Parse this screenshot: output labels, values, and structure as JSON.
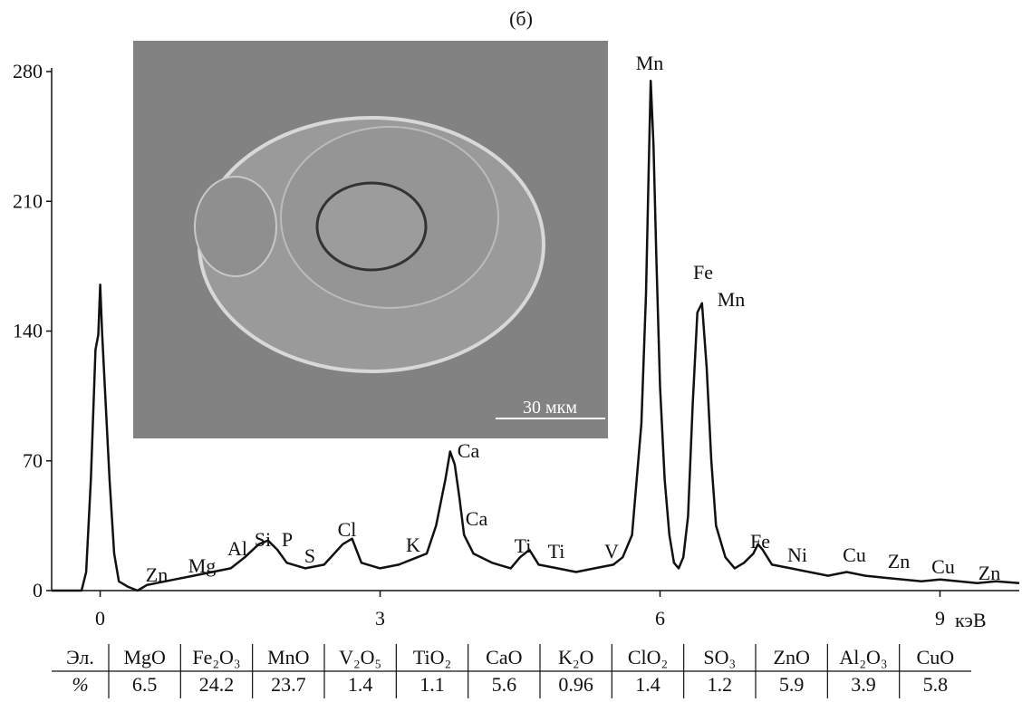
{
  "chart_data": {
    "type": "line",
    "title": "(б)",
    "xlabel": "кэВ",
    "inset_label": "30 мкм",
    "color": "#111111",
    "x": [
      -0.52,
      -0.3,
      -0.2,
      -0.15,
      -0.1,
      -0.05,
      -0.02,
      0,
      0.02,
      0.05,
      0.1,
      0.15,
      0.2,
      0.3,
      0.4,
      0.5,
      0.6,
      0.8,
      1.0,
      1.2,
      1.4,
      1.55,
      1.7,
      1.8,
      1.9,
      2.0,
      2.2,
      2.4,
      2.6,
      2.7,
      2.8,
      3.0,
      3.2,
      3.4,
      3.5,
      3.6,
      3.7,
      3.75,
      3.8,
      3.85,
      3.9,
      4.0,
      4.2,
      4.4,
      4.5,
      4.6,
      4.7,
      4.9,
      5.1,
      5.3,
      5.5,
      5.6,
      5.7,
      5.8,
      5.85,
      5.88,
      5.9,
      5.93,
      5.96,
      6.0,
      6.05,
      6.1,
      6.15,
      6.2,
      6.25,
      6.3,
      6.35,
      6.4,
      6.45,
      6.5,
      6.55,
      6.6,
      6.7,
      6.8,
      6.9,
      7.0,
      7.05,
      7.1,
      7.2,
      7.4,
      7.6,
      7.8,
      8.0,
      8.2,
      8.4,
      8.6,
      8.8,
      9.0,
      9.2,
      9.4,
      9.6,
      9.85
    ],
    "y": [
      0,
      0,
      0,
      10,
      60,
      130,
      138,
      165,
      140,
      110,
      60,
      20,
      5,
      2,
      0,
      3,
      4,
      6,
      8,
      10,
      12,
      18,
      25,
      27,
      22,
      15,
      12,
      14,
      25,
      28,
      15,
      12,
      14,
      18,
      20,
      35,
      60,
      75,
      68,
      50,
      30,
      20,
      15,
      12,
      18,
      22,
      14,
      12,
      10,
      12,
      14,
      18,
      30,
      90,
      160,
      230,
      275,
      240,
      180,
      110,
      60,
      30,
      15,
      12,
      18,
      40,
      100,
      150,
      155,
      120,
      70,
      35,
      18,
      12,
      15,
      20,
      25,
      22,
      14,
      12,
      10,
      8,
      10,
      8,
      7,
      6,
      5,
      6,
      5,
      4,
      5,
      4
    ],
    "xlim": [
      -0.52,
      9.85
    ],
    "ylim": [
      0,
      280
    ],
    "xticks": [
      0,
      3,
      6,
      9
    ],
    "yticks": [
      0,
      70,
      140,
      210,
      280
    ],
    "annotations": [
      "Zn",
      "Mg",
      "Al",
      "Si",
      "P",
      "S",
      "Cl",
      "K",
      "Ca",
      "Ca",
      "Ti",
      "Ti",
      "V",
      "Mn",
      "Fe",
      "Mn",
      "Fe",
      "Ni",
      "Cu",
      "Zn",
      "Cu",
      "Zn"
    ]
  },
  "table": {
    "header": [
      "Эл.",
      "MgO",
      "Fe₂O₃",
      "MnO",
      "V₂O₅",
      "TiO₂",
      "CaO",
      "K₂O",
      "ClO₂",
      "SO₃",
      "ZnO",
      "Al₂O₃",
      "CuO"
    ],
    "rows": [
      [
        "%",
        6.5,
        24.2,
        23.7,
        1.4,
        1.1,
        5.6,
        0.96,
        1.4,
        1.2,
        5.9,
        3.9,
        5.8
      ]
    ]
  }
}
